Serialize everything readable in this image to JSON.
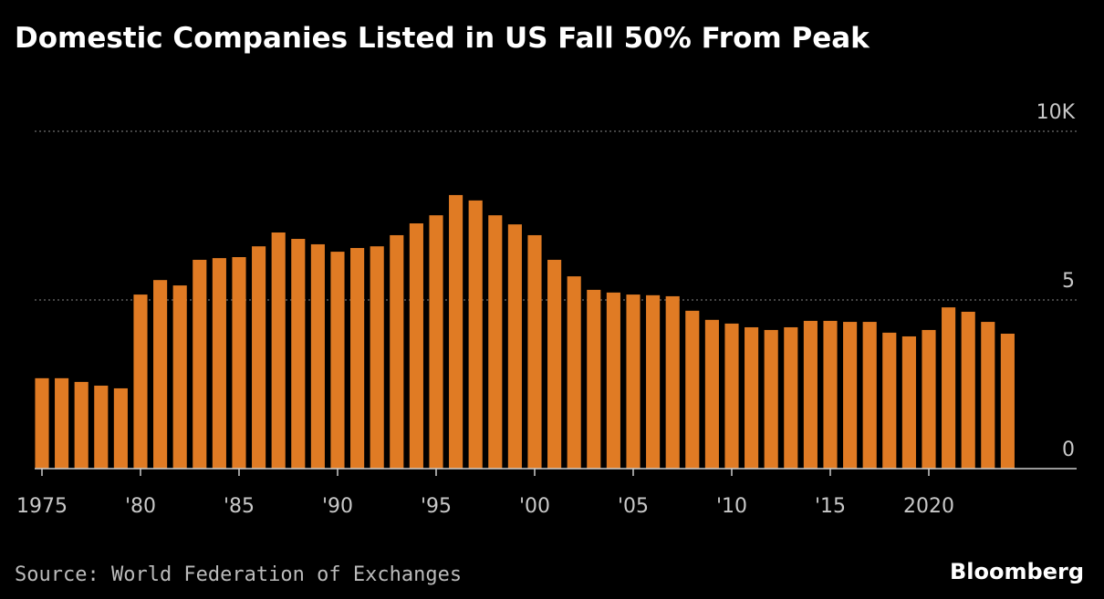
{
  "chart_data": {
    "type": "bar",
    "title": "Domestic Companies Listed in US Fall 50% From Peak",
    "source": "Source: World Federation of Exchanges",
    "brand": "Bloomberg",
    "x": [
      1975,
      1976,
      1977,
      1978,
      1979,
      1980,
      1981,
      1982,
      1983,
      1984,
      1985,
      1986,
      1987,
      1988,
      1989,
      1990,
      1991,
      1992,
      1993,
      1994,
      1995,
      1996,
      1997,
      1998,
      1999,
      2000,
      2001,
      2002,
      2003,
      2004,
      2005,
      2006,
      2007,
      2008,
      2009,
      2010,
      2011,
      2012,
      2013,
      2014,
      2015,
      2016,
      2017,
      2018,
      2019,
      2020,
      2021,
      2022,
      2023,
      2024
    ],
    "values": [
      2.68,
      2.68,
      2.57,
      2.46,
      2.38,
      5.16,
      5.59,
      5.43,
      6.19,
      6.24,
      6.27,
      6.59,
      7.0,
      6.81,
      6.65,
      6.43,
      6.54,
      6.59,
      6.92,
      7.27,
      7.51,
      8.11,
      7.95,
      7.51,
      7.24,
      6.92,
      6.19,
      5.7,
      5.3,
      5.22,
      5.16,
      5.14,
      5.11,
      4.68,
      4.41,
      4.3,
      4.19,
      4.11,
      4.19,
      4.38,
      4.38,
      4.35,
      4.35,
      4.03,
      3.92,
      4.11,
      4.78,
      4.65,
      4.35,
      4.0
    ],
    "color": "#e07b24",
    "xlim": [
      1974.63,
      2027.5
    ],
    "xticks": [
      1975,
      {
        "value": 1980,
        "label": "'80"
      },
      {
        "value": 1985,
        "label": "'85"
      },
      {
        "value": 1990,
        "label": "'90"
      },
      {
        "value": 1995,
        "label": "'95"
      },
      {
        "value": 2000,
        "label": "'00"
      },
      {
        "value": 2005,
        "label": "'05"
      },
      {
        "value": 2010,
        "label": "'10"
      },
      {
        "value": 2015,
        "label": "'15"
      },
      2020
    ],
    "ylim": [
      0,
      10
    ],
    "yticks": [
      0,
      5,
      {
        "value": 10,
        "label": "10K"
      }
    ],
    "grid": true
  }
}
